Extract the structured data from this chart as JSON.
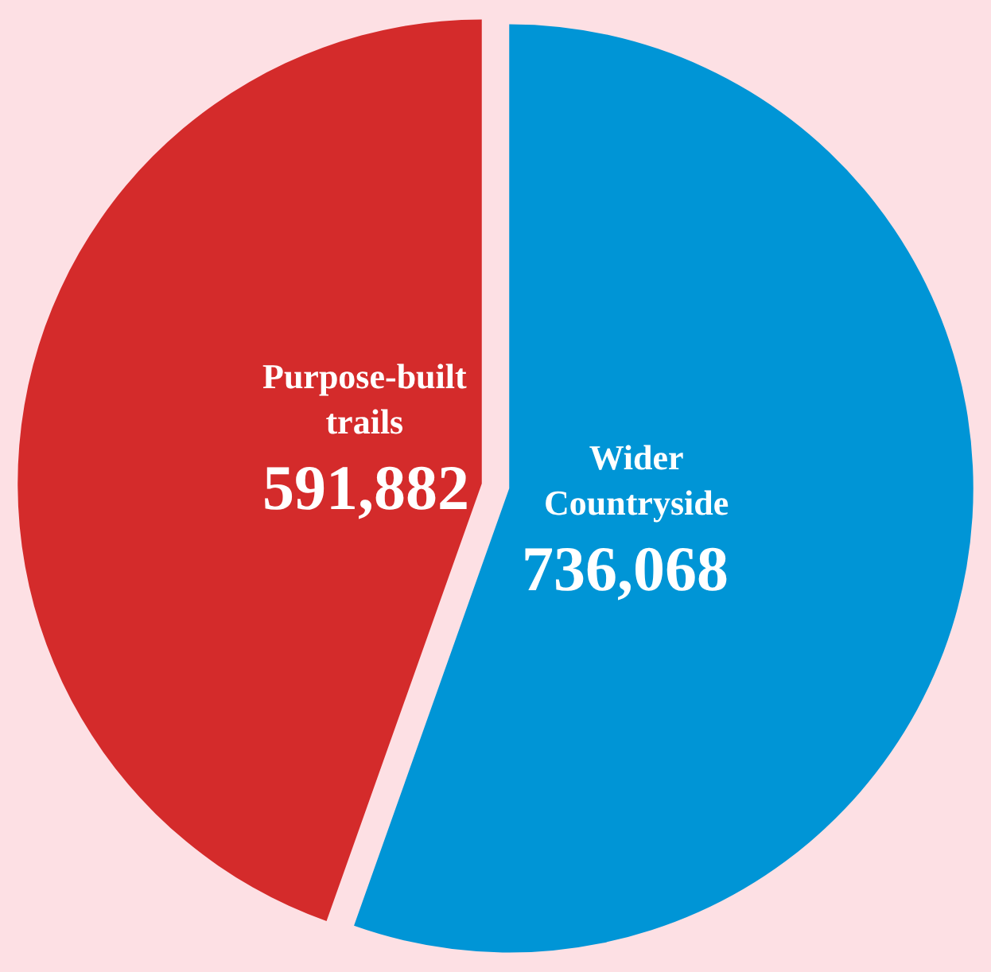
{
  "chart_data": {
    "type": "pie",
    "categories": [
      "Wider Countryside",
      "Purpose-built trails"
    ],
    "values": [
      736068,
      591882
    ],
    "value_labels": [
      "736,068",
      "591,882"
    ],
    "colors": [
      "#0095d6",
      "#d42b2b"
    ],
    "legend": false
  }
}
